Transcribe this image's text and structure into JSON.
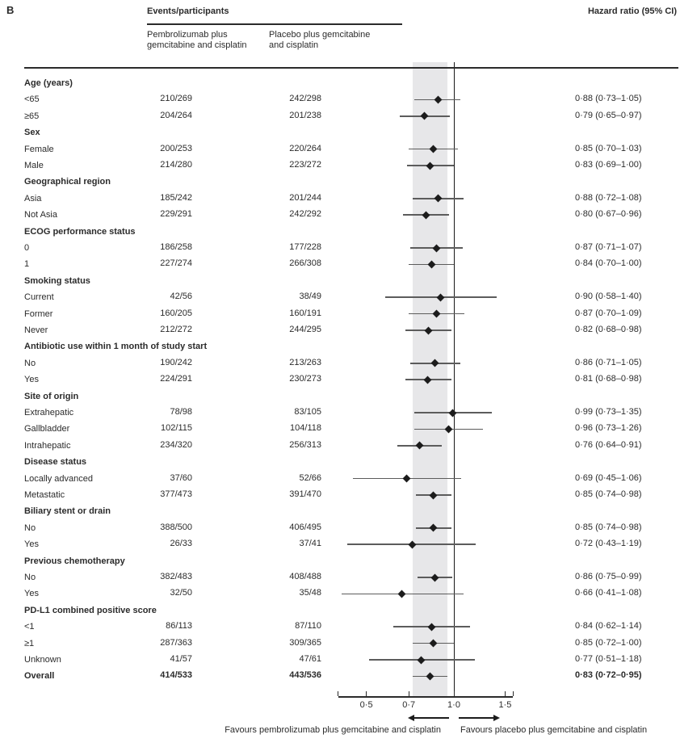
{
  "panel_label": "B",
  "header": {
    "events_participants": "Events/participants",
    "arm1": "Pembrolizumab plus gemcitabine and cisplatin",
    "arm2": "Placebo plus gemcitabine and cisplatin",
    "hazard_ratio": "Hazard ratio (95% CI)"
  },
  "footer": {
    "favours_left": "Favours pembrolizumab plus gemcitabine and cisplatin",
    "favours_right": "Favours placebo plus gemcitabine and cisplatin"
  },
  "colors": {
    "text": "#2b2b2b",
    "band": "#e7e7e9",
    "ci_line": "#5c5c5c",
    "marker": "#1c1c1c"
  },
  "chart_data": {
    "type": "scatter",
    "subtype": "forest-plot",
    "title": "Hazard ratio (95% CI)",
    "x_scale": "log",
    "xlim": [
      0.4,
      1.6
    ],
    "reference_line": 1.0,
    "shaded_band": {
      "from": 0.72,
      "to": 0.95
    },
    "x_ticks": {
      "values": [
        0.5,
        0.7,
        1.0,
        1.5
      ],
      "labels": [
        "0·5",
        "0·7",
        "1·0",
        "1·5"
      ]
    },
    "rows": [
      {
        "label": "Age (years)",
        "type": "header"
      },
      {
        "label": "<65",
        "type": "data",
        "e1": "210/269",
        "e2": "242/298",
        "hr_text": "0·88 (0·73–1·05)",
        "hr": 0.88,
        "lo": 0.73,
        "hi": 1.05
      },
      {
        "label": "≥65",
        "type": "data",
        "e1": "204/264",
        "e2": "201/238",
        "hr_text": "0·79 (0·65–0·97)",
        "hr": 0.79,
        "lo": 0.65,
        "hi": 0.97
      },
      {
        "label": "Sex",
        "type": "header"
      },
      {
        "label": "Female",
        "type": "data",
        "e1": "200/253",
        "e2": "220/264",
        "hr_text": "0·85 (0·70–1·03)",
        "hr": 0.85,
        "lo": 0.7,
        "hi": 1.03
      },
      {
        "label": "Male",
        "type": "data",
        "e1": "214/280",
        "e2": "223/272",
        "hr_text": "0·83 (0·69–1·00)",
        "hr": 0.83,
        "lo": 0.69,
        "hi": 1.0
      },
      {
        "label": "Geographical region",
        "type": "header"
      },
      {
        "label": "Asia",
        "type": "data",
        "e1": "185/242",
        "e2": "201/244",
        "hr_text": "0·88 (0·72–1·08)",
        "hr": 0.88,
        "lo": 0.72,
        "hi": 1.08
      },
      {
        "label": "Not Asia",
        "type": "data",
        "e1": "229/291",
        "e2": "242/292",
        "hr_text": "0·80 (0·67–0·96)",
        "hr": 0.8,
        "lo": 0.67,
        "hi": 0.96
      },
      {
        "label": "ECOG performance status",
        "type": "header"
      },
      {
        "label": "0",
        "type": "data",
        "e1": "186/258",
        "e2": "177/228",
        "hr_text": "0·87 (0·71–1·07)",
        "hr": 0.87,
        "lo": 0.71,
        "hi": 1.07
      },
      {
        "label": "1",
        "type": "data",
        "e1": "227/274",
        "e2": "266/308",
        "hr_text": "0·84 (0·70–1·00)",
        "hr": 0.84,
        "lo": 0.7,
        "hi": 1.0
      },
      {
        "label": "Smoking status",
        "type": "header"
      },
      {
        "label": "Current",
        "type": "data",
        "e1": "42/56",
        "e2": "38/49",
        "hr_text": "0·90 (0·58–1·40)",
        "hr": 0.9,
        "lo": 0.58,
        "hi": 1.4
      },
      {
        "label": "Former",
        "type": "data",
        "e1": "160/205",
        "e2": "160/191",
        "hr_text": "0·87 (0·70–1·09)",
        "hr": 0.87,
        "lo": 0.7,
        "hi": 1.09
      },
      {
        "label": "Never",
        "type": "data",
        "e1": "212/272",
        "e2": "244/295",
        "hr_text": "0·82 (0·68–0·98)",
        "hr": 0.82,
        "lo": 0.68,
        "hi": 0.98
      },
      {
        "label": "Antibiotic use within 1 month of study start",
        "type": "header"
      },
      {
        "label": "No",
        "type": "data",
        "e1": "190/242",
        "e2": "213/263",
        "hr_text": "0·86 (0·71–1·05)",
        "hr": 0.86,
        "lo": 0.71,
        "hi": 1.05
      },
      {
        "label": "Yes",
        "type": "data",
        "e1": "224/291",
        "e2": "230/273",
        "hr_text": "0·81 (0·68–0·98)",
        "hr": 0.81,
        "lo": 0.68,
        "hi": 0.98
      },
      {
        "label": "Site of origin",
        "type": "header"
      },
      {
        "label": "Extrahepatic",
        "type": "data",
        "e1": "78/98",
        "e2": "83/105",
        "hr_text": "0·99 (0·73–1·35)",
        "hr": 0.99,
        "lo": 0.73,
        "hi": 1.35
      },
      {
        "label": "Gallbladder",
        "type": "data",
        "e1": "102/115",
        "e2": "104/118",
        "hr_text": "0·96 (0·73–1·26)",
        "hr": 0.96,
        "lo": 0.73,
        "hi": 1.26
      },
      {
        "label": "Intrahepatic",
        "type": "data",
        "e1": "234/320",
        "e2": "256/313",
        "hr_text": "0·76 (0·64–0·91)",
        "hr": 0.76,
        "lo": 0.64,
        "hi": 0.91
      },
      {
        "label": "Disease status",
        "type": "header"
      },
      {
        "label": "Locally advanced",
        "type": "data",
        "e1": "37/60",
        "e2": "52/66",
        "hr_text": "0·69 (0·45–1·06)",
        "hr": 0.69,
        "lo": 0.45,
        "hi": 1.06
      },
      {
        "label": "Metastatic",
        "type": "data",
        "e1": "377/473",
        "e2": "391/470",
        "hr_text": "0·85 (0·74–0·98)",
        "hr": 0.85,
        "lo": 0.74,
        "hi": 0.98
      },
      {
        "label": "Biliary stent or drain",
        "type": "header"
      },
      {
        "label": "No",
        "type": "data",
        "e1": "388/500",
        "e2": "406/495",
        "hr_text": "0·85 (0·74–0·98)",
        "hr": 0.85,
        "lo": 0.74,
        "hi": 0.98
      },
      {
        "label": "Yes",
        "type": "data",
        "e1": "26/33",
        "e2": "37/41",
        "hr_text": "0·72 (0·43–1·19)",
        "hr": 0.72,
        "lo": 0.43,
        "hi": 1.19
      },
      {
        "label": "Previous chemotherapy",
        "type": "header"
      },
      {
        "label": "No",
        "type": "data",
        "e1": "382/483",
        "e2": "408/488",
        "hr_text": "0·86 (0·75–0·99)",
        "hr": 0.86,
        "lo": 0.75,
        "hi": 0.99
      },
      {
        "label": "Yes",
        "type": "data",
        "e1": "32/50",
        "e2": "35/48",
        "hr_text": "0·66 (0·41–1·08)",
        "hr": 0.66,
        "lo": 0.41,
        "hi": 1.08
      },
      {
        "label": "PD-L1 combined positive score",
        "type": "header"
      },
      {
        "label": "<1",
        "type": "data",
        "e1": "86/113",
        "e2": "87/110",
        "hr_text": "0·84 (0·62–1·14)",
        "hr": 0.84,
        "lo": 0.62,
        "hi": 1.14
      },
      {
        "label": "≥1",
        "type": "data",
        "e1": "287/363",
        "e2": "309/365",
        "hr_text": "0·85 (0·72–1·00)",
        "hr": 0.85,
        "lo": 0.72,
        "hi": 1.0
      },
      {
        "label": "Unknown",
        "type": "data",
        "e1": "41/57",
        "e2": "47/61",
        "hr_text": "0·77 (0·51–1·18)",
        "hr": 0.77,
        "lo": 0.51,
        "hi": 1.18
      },
      {
        "label": "Overall",
        "type": "overall",
        "e1": "414/533",
        "e2": "443/536",
        "hr_text": "0·83 (0·72–0·95)",
        "hr": 0.83,
        "lo": 0.72,
        "hi": 0.95
      }
    ]
  }
}
